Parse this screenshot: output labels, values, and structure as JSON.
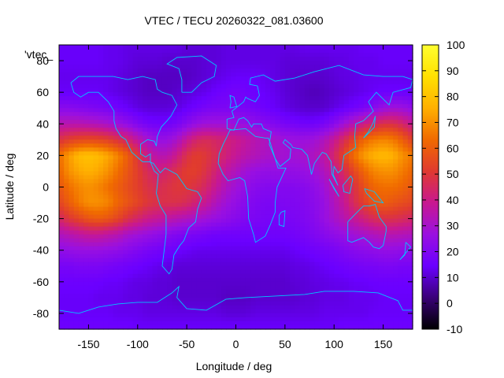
{
  "chart_data": {
    "type": "heatmap",
    "title": "VTEC / TECU 20260322_081.03600",
    "xlabel": "Longitude / deg",
    "ylabel": "Latitude / deg",
    "series_label": "'vtec_",
    "xlim": [
      -180,
      180
    ],
    "ylim": [
      -90,
      90
    ],
    "x_ticks": [
      -150,
      -100,
      -50,
      0,
      50,
      100,
      150
    ],
    "y_ticks": [
      -80,
      -60,
      -40,
      -20,
      0,
      20,
      40,
      60,
      80
    ],
    "colorbar": {
      "range": [
        -10,
        100
      ],
      "ticks": [
        -10,
        0,
        10,
        20,
        30,
        40,
        50,
        60,
        70,
        80,
        90,
        100
      ],
      "colors": [
        "#000000",
        "#3a0078",
        "#6a00ff",
        "#9a10e0",
        "#c81890",
        "#e03a30",
        "#f06a00",
        "#ffb000",
        "#ffe000",
        "#ffff30"
      ]
    },
    "grid": false,
    "rows": [
      {
        "lat": 87.5,
        "values": [
          14,
          14,
          14,
          14,
          14,
          13,
          13,
          12,
          12,
          12,
          12,
          12,
          12,
          11,
          11,
          11,
          11,
          12,
          12,
          12,
          12,
          12,
          12,
          12,
          12,
          13,
          13,
          13,
          13,
          13,
          13,
          14,
          14,
          14,
          14,
          14,
          14
        ]
      },
      {
        "lat": 80,
        "values": [
          14,
          14,
          14,
          14,
          14,
          13,
          13,
          12,
          11,
          11,
          11,
          10,
          10,
          10,
          10,
          11,
          11,
          12,
          12,
          12,
          12,
          12,
          12,
          11,
          11,
          11,
          11,
          11,
          12,
          12,
          13,
          13,
          13,
          14,
          14,
          14,
          14
        ]
      },
      {
        "lat": 70,
        "values": [
          13,
          13,
          13,
          13,
          13,
          13,
          12,
          11,
          10,
          9,
          9,
          9,
          9,
          9,
          10,
          11,
          12,
          13,
          14,
          14,
          14,
          13,
          12,
          11,
          10,
          10,
          10,
          10,
          11,
          12,
          12,
          13,
          13,
          13,
          13,
          13,
          13
        ]
      },
      {
        "lat": 60,
        "values": [
          14,
          14,
          14,
          14,
          14,
          13,
          12,
          11,
          10,
          9,
          9,
          9,
          10,
          11,
          12,
          13,
          15,
          16,
          17,
          16,
          15,
          14,
          13,
          11,
          10,
          9,
          8,
          9,
          10,
          11,
          12,
          13,
          14,
          15,
          15,
          15,
          14
        ]
      },
      {
        "lat": 50,
        "values": [
          22,
          22,
          21,
          20,
          19,
          18,
          16,
          14,
          12,
          11,
          11,
          11,
          12,
          14,
          16,
          18,
          19,
          19,
          19,
          18,
          17,
          15,
          14,
          12,
          11,
          10,
          10,
          10,
          12,
          14,
          16,
          18,
          22,
          26,
          28,
          27,
          24
        ]
      },
      {
        "lat": 40,
        "values": [
          34,
          34,
          34,
          33,
          32,
          30,
          27,
          24,
          20,
          17,
          16,
          16,
          18,
          22,
          26,
          28,
          28,
          28,
          27,
          26,
          24,
          22,
          20,
          18,
          17,
          16,
          16,
          18,
          22,
          28,
          34,
          40,
          44,
          48,
          48,
          44,
          38
        ]
      },
      {
        "lat": 30,
        "values": [
          48,
          52,
          54,
          55,
          54,
          52,
          48,
          43,
          36,
          30,
          26,
          26,
          30,
          38,
          44,
          46,
          44,
          42,
          40,
          37,
          34,
          32,
          30,
          28,
          27,
          27,
          28,
          32,
          38,
          46,
          54,
          62,
          66,
          68,
          66,
          60,
          52
        ]
      },
      {
        "lat": 20,
        "values": [
          64,
          72,
          78,
          80,
          78,
          74,
          68,
          60,
          50,
          40,
          34,
          34,
          40,
          48,
          52,
          50,
          46,
          42,
          38,
          35,
          33,
          31,
          30,
          29,
          29,
          30,
          32,
          36,
          44,
          54,
          64,
          72,
          76,
          78,
          76,
          70,
          66
        ]
      },
      {
        "lat": 10,
        "values": [
          62,
          70,
          74,
          76,
          74,
          70,
          64,
          58,
          52,
          46,
          42,
          44,
          48,
          52,
          52,
          48,
          42,
          36,
          32,
          28,
          26,
          25,
          25,
          25,
          25,
          26,
          28,
          32,
          38,
          46,
          54,
          62,
          68,
          70,
          70,
          66,
          62
        ]
      },
      {
        "lat": 0,
        "values": [
          58,
          64,
          68,
          70,
          68,
          64,
          60,
          56,
          52,
          48,
          46,
          48,
          50,
          50,
          48,
          44,
          38,
          32,
          28,
          25,
          22,
          21,
          21,
          21,
          21,
          22,
          24,
          28,
          34,
          40,
          48,
          56,
          62,
          64,
          64,
          62,
          58
        ]
      },
      {
        "lat": -10,
        "values": [
          54,
          60,
          66,
          70,
          70,
          68,
          62,
          58,
          54,
          50,
          48,
          48,
          48,
          46,
          42,
          38,
          32,
          28,
          25,
          22,
          20,
          19,
          19,
          20,
          20,
          21,
          23,
          26,
          32,
          38,
          46,
          52,
          58,
          60,
          58,
          56,
          54
        ]
      },
      {
        "lat": -20,
        "values": [
          44,
          50,
          54,
          58,
          60,
          58,
          54,
          48,
          44,
          40,
          38,
          36,
          34,
          32,
          30,
          28,
          26,
          24,
          22,
          20,
          19,
          18,
          18,
          18,
          19,
          20,
          22,
          26,
          30,
          34,
          38,
          42,
          46,
          48,
          48,
          46,
          44
        ]
      },
      {
        "lat": -30,
        "values": [
          32,
          34,
          36,
          38,
          38,
          36,
          34,
          30,
          28,
          26,
          24,
          22,
          20,
          19,
          18,
          17,
          16,
          16,
          16,
          16,
          16,
          16,
          16,
          16,
          17,
          18,
          20,
          22,
          24,
          26,
          28,
          30,
          32,
          34,
          34,
          33,
          32
        ]
      },
      {
        "lat": -40,
        "values": [
          24,
          25,
          26,
          26,
          26,
          25,
          24,
          22,
          20,
          18,
          17,
          16,
          15,
          14,
          13,
          13,
          13,
          13,
          13,
          13,
          13,
          13,
          13,
          13,
          14,
          15,
          16,
          17,
          18,
          20,
          22,
          23,
          24,
          25,
          25,
          24,
          24
        ]
      },
      {
        "lat": -50,
        "values": [
          18,
          18,
          19,
          19,
          19,
          18,
          17,
          16,
          15,
          14,
          13,
          12,
          11,
          11,
          11,
          11,
          11,
          11,
          11,
          11,
          11,
          11,
          11,
          11,
          12,
          12,
          13,
          14,
          15,
          16,
          17,
          18,
          18,
          19,
          19,
          18,
          18
        ]
      },
      {
        "lat": -60,
        "values": [
          15,
          15,
          15,
          15,
          15,
          14,
          14,
          13,
          12,
          12,
          11,
          11,
          10,
          10,
          10,
          10,
          10,
          10,
          10,
          10,
          10,
          10,
          10,
          10,
          11,
          11,
          12,
          12,
          13,
          13,
          14,
          14,
          15,
          15,
          15,
          15,
          15
        ]
      },
      {
        "lat": -70,
        "values": [
          14,
          14,
          14,
          14,
          13,
          13,
          13,
          12,
          12,
          11,
          11,
          11,
          10,
          10,
          10,
          10,
          10,
          9,
          9,
          9,
          10,
          10,
          10,
          10,
          10,
          11,
          11,
          12,
          12,
          12,
          13,
          13,
          13,
          14,
          14,
          14,
          14
        ]
      },
      {
        "lat": -80,
        "values": [
          14,
          14,
          14,
          14,
          14,
          14,
          13,
          13,
          13,
          12,
          12,
          12,
          12,
          12,
          12,
          12,
          12,
          11,
          11,
          11,
          12,
          12,
          12,
          12,
          12,
          12,
          12,
          13,
          13,
          13,
          13,
          13,
          14,
          14,
          14,
          14,
          14
        ]
      },
      {
        "lat": -87.5,
        "values": [
          15,
          15,
          15,
          15,
          15,
          15,
          15,
          15,
          14,
          14,
          14,
          14,
          14,
          14,
          14,
          14,
          14,
          14,
          14,
          14,
          14,
          14,
          14,
          14,
          14,
          14,
          14,
          14,
          14,
          15,
          15,
          15,
          15,
          15,
          15,
          15,
          15
        ]
      }
    ],
    "row_lons": [
      -180,
      -170,
      -160,
      -150,
      -140,
      -130,
      -120,
      -110,
      -100,
      -90,
      -80,
      -70,
      -60,
      -50,
      -40,
      -30,
      -20,
      -10,
      0,
      10,
      20,
      30,
      40,
      50,
      60,
      70,
      80,
      90,
      100,
      110,
      120,
      130,
      140,
      150,
      160,
      170,
      180
    ]
  }
}
